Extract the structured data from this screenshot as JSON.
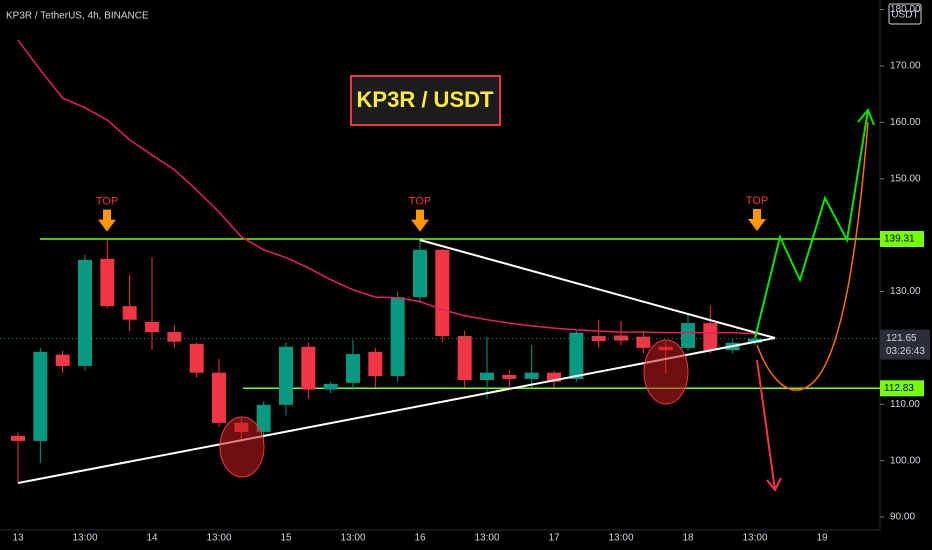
{
  "chart_data": {
    "type": "candlestick",
    "header": "KP3R / TetherUS, 4h, BINANCE",
    "title": "KP3R / USDT",
    "currency": "USDT",
    "annotations": [
      "TOP",
      "TOP",
      "TOP"
    ],
    "countdown": "03:26:43",
    "ylim": [
      87.7,
      181.7
    ],
    "yticks": [
      {
        "value": 90,
        "label": "90.00"
      },
      {
        "value": 100,
        "label": "100.00"
      },
      {
        "value": 110,
        "label": "110.00"
      },
      {
        "value": 130,
        "label": "130.00"
      },
      {
        "value": 150,
        "label": "150.00"
      },
      {
        "value": 160,
        "label": "160.00"
      },
      {
        "value": 170,
        "label": "170.00"
      },
      {
        "value": 180,
        "label": "180.00"
      }
    ],
    "xlabels": [
      "13",
      "13:00",
      "14",
      "13:00",
      "15",
      "13:00",
      "16",
      "13:00",
      "17",
      "13:00",
      "18",
      "13:00",
      "19"
    ],
    "up_color": "#089981",
    "down_color": "#f23645",
    "ma_color": "#e91e63",
    "candles": [
      [
        104.4,
        105,
        96.2,
        103.5
      ],
      [
        103.5,
        120,
        99.6,
        119.3
      ],
      [
        118.8,
        119.5,
        115.5,
        116.8
      ],
      [
        116.8,
        136.5,
        116,
        135.6
      ],
      [
        135.8,
        139.2,
        127,
        127.4
      ],
      [
        127.4,
        133,
        123,
        125
      ],
      [
        124.6,
        136.1,
        119.6,
        122.8
      ],
      [
        122.8,
        124,
        120,
        121.1
      ],
      [
        120.7,
        121,
        114.7,
        115.6
      ],
      [
        115.6,
        118,
        106,
        106.7
      ],
      [
        106.7,
        107.5,
        103.3,
        105.1
      ],
      [
        105.1,
        110.5,
        104,
        109.9
      ],
      [
        109.9,
        121,
        108,
        120.2
      ],
      [
        120.2,
        121,
        111,
        112.6
      ],
      [
        112.6,
        114,
        112,
        113.6
      ],
      [
        113.8,
        121.4,
        112.5,
        118.9
      ],
      [
        119.3,
        120,
        113,
        115
      ],
      [
        115,
        130,
        114,
        129
      ],
      [
        129,
        139.2,
        128,
        137.4
      ],
      [
        137.4,
        137.5,
        121,
        122.1
      ],
      [
        122.1,
        123,
        113,
        114.3
      ],
      [
        114.3,
        122,
        111,
        115.6
      ],
      [
        115.2,
        116,
        113,
        114.5
      ],
      [
        114.5,
        120.5,
        113,
        115.6
      ],
      [
        115.6,
        116,
        113,
        114
      ],
      [
        114.5,
        123,
        114,
        122.7
      ],
      [
        122.1,
        125,
        120,
        121.2
      ],
      [
        122.2,
        124.8,
        120.5,
        121.3
      ],
      [
        122,
        123,
        119,
        120
      ],
      [
        120.2,
        121,
        115.5,
        119.6
      ],
      [
        120,
        126,
        119.5,
        124.4
      ],
      [
        124.4,
        127.5,
        119,
        119.6
      ],
      [
        119.6,
        121.5,
        119,
        120.9
      ],
      [
        120.9,
        122,
        120.5,
        121.65
      ]
    ],
    "ma": [
      174.6,
      169.3,
      164.3,
      162.6,
      160.4,
      156.9,
      154.2,
      151.6,
      148.0,
      144.1,
      139.7,
      137.4,
      136.0,
      134.2,
      132.1,
      130.3,
      129.0,
      128.9,
      128.2,
      126.8,
      125.7,
      125.0,
      124.4,
      123.9,
      123.5,
      123.2,
      123.0,
      122.8,
      122.8,
      122.7,
      122.7,
      122.7,
      122.7,
      122.5
    ],
    "levels": [
      139.31,
      112.83
    ],
    "last_price": 121.65
  }
}
